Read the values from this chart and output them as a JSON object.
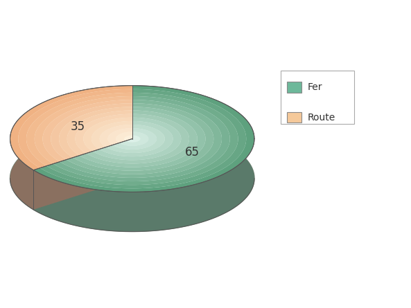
{
  "labels": [
    "Fer",
    "Route"
  ],
  "values": [
    65,
    35
  ],
  "color_fer_top_outer": "#5a9e7a",
  "color_fer_top_inner": "#d0e8dc",
  "color_route_top_outer": "#f0b080",
  "color_route_top_inner": "#faebd0",
  "color_side_fer": "#5a7a6a",
  "color_side_route": "#8a7060",
  "color_side_main": "#7a8878",
  "label_values": [
    "65",
    "35"
  ],
  "background_color": "#ffffff",
  "legend_labels": [
    "Fer",
    "Route"
  ],
  "legend_colors_top": [
    "#6db89a",
    "#f5c99a"
  ],
  "font_size": 12
}
